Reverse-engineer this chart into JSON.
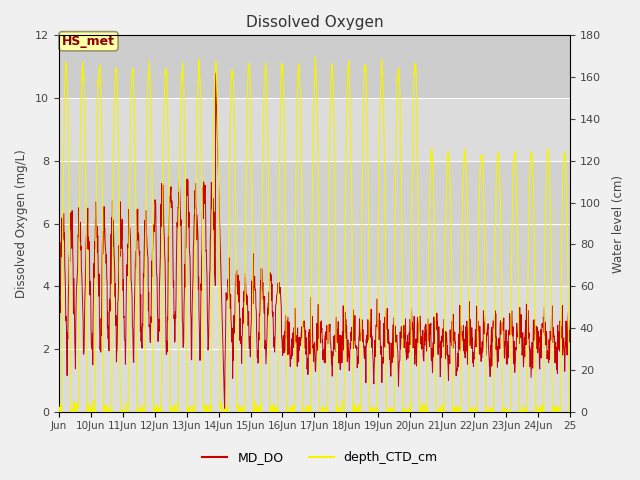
{
  "title": "Dissolved Oxygen",
  "ylabel_left": "Dissolved Oxygen (mg/L)",
  "ylabel_right": "Water level (cm)",
  "ylim_left": [
    0,
    12
  ],
  "ylim_right": [
    0,
    180
  ],
  "color_do": "#cc0000",
  "color_depth": "#f5f500",
  "bg_color": "#f0f0f0",
  "plot_bg": "#e8e8e8",
  "annotation_text": "HS_met",
  "legend_labels": [
    "MD_DO",
    "depth_CTD_cm"
  ],
  "band1_ymin": 10,
  "band1_ymax": 12,
  "band2_ymin": 4,
  "band2_ymax": 8,
  "xtick_labels": [
    "Jun",
    "10Jun",
    "11Jun",
    "12Jun",
    "13Jun",
    "14Jun",
    "15Jun",
    "16Jun",
    "17Jun",
    "18Jun",
    "19Jun",
    "20Jun",
    "21Jun",
    "22Jun",
    "23Jun",
    "24Jun",
    "25"
  ],
  "xtick_positions": [
    9,
    10,
    11,
    12,
    13,
    14,
    15,
    16,
    17,
    18,
    19,
    20,
    21,
    22,
    23,
    24,
    25
  ],
  "figsize": [
    6.4,
    4.8
  ],
  "dpi": 100
}
